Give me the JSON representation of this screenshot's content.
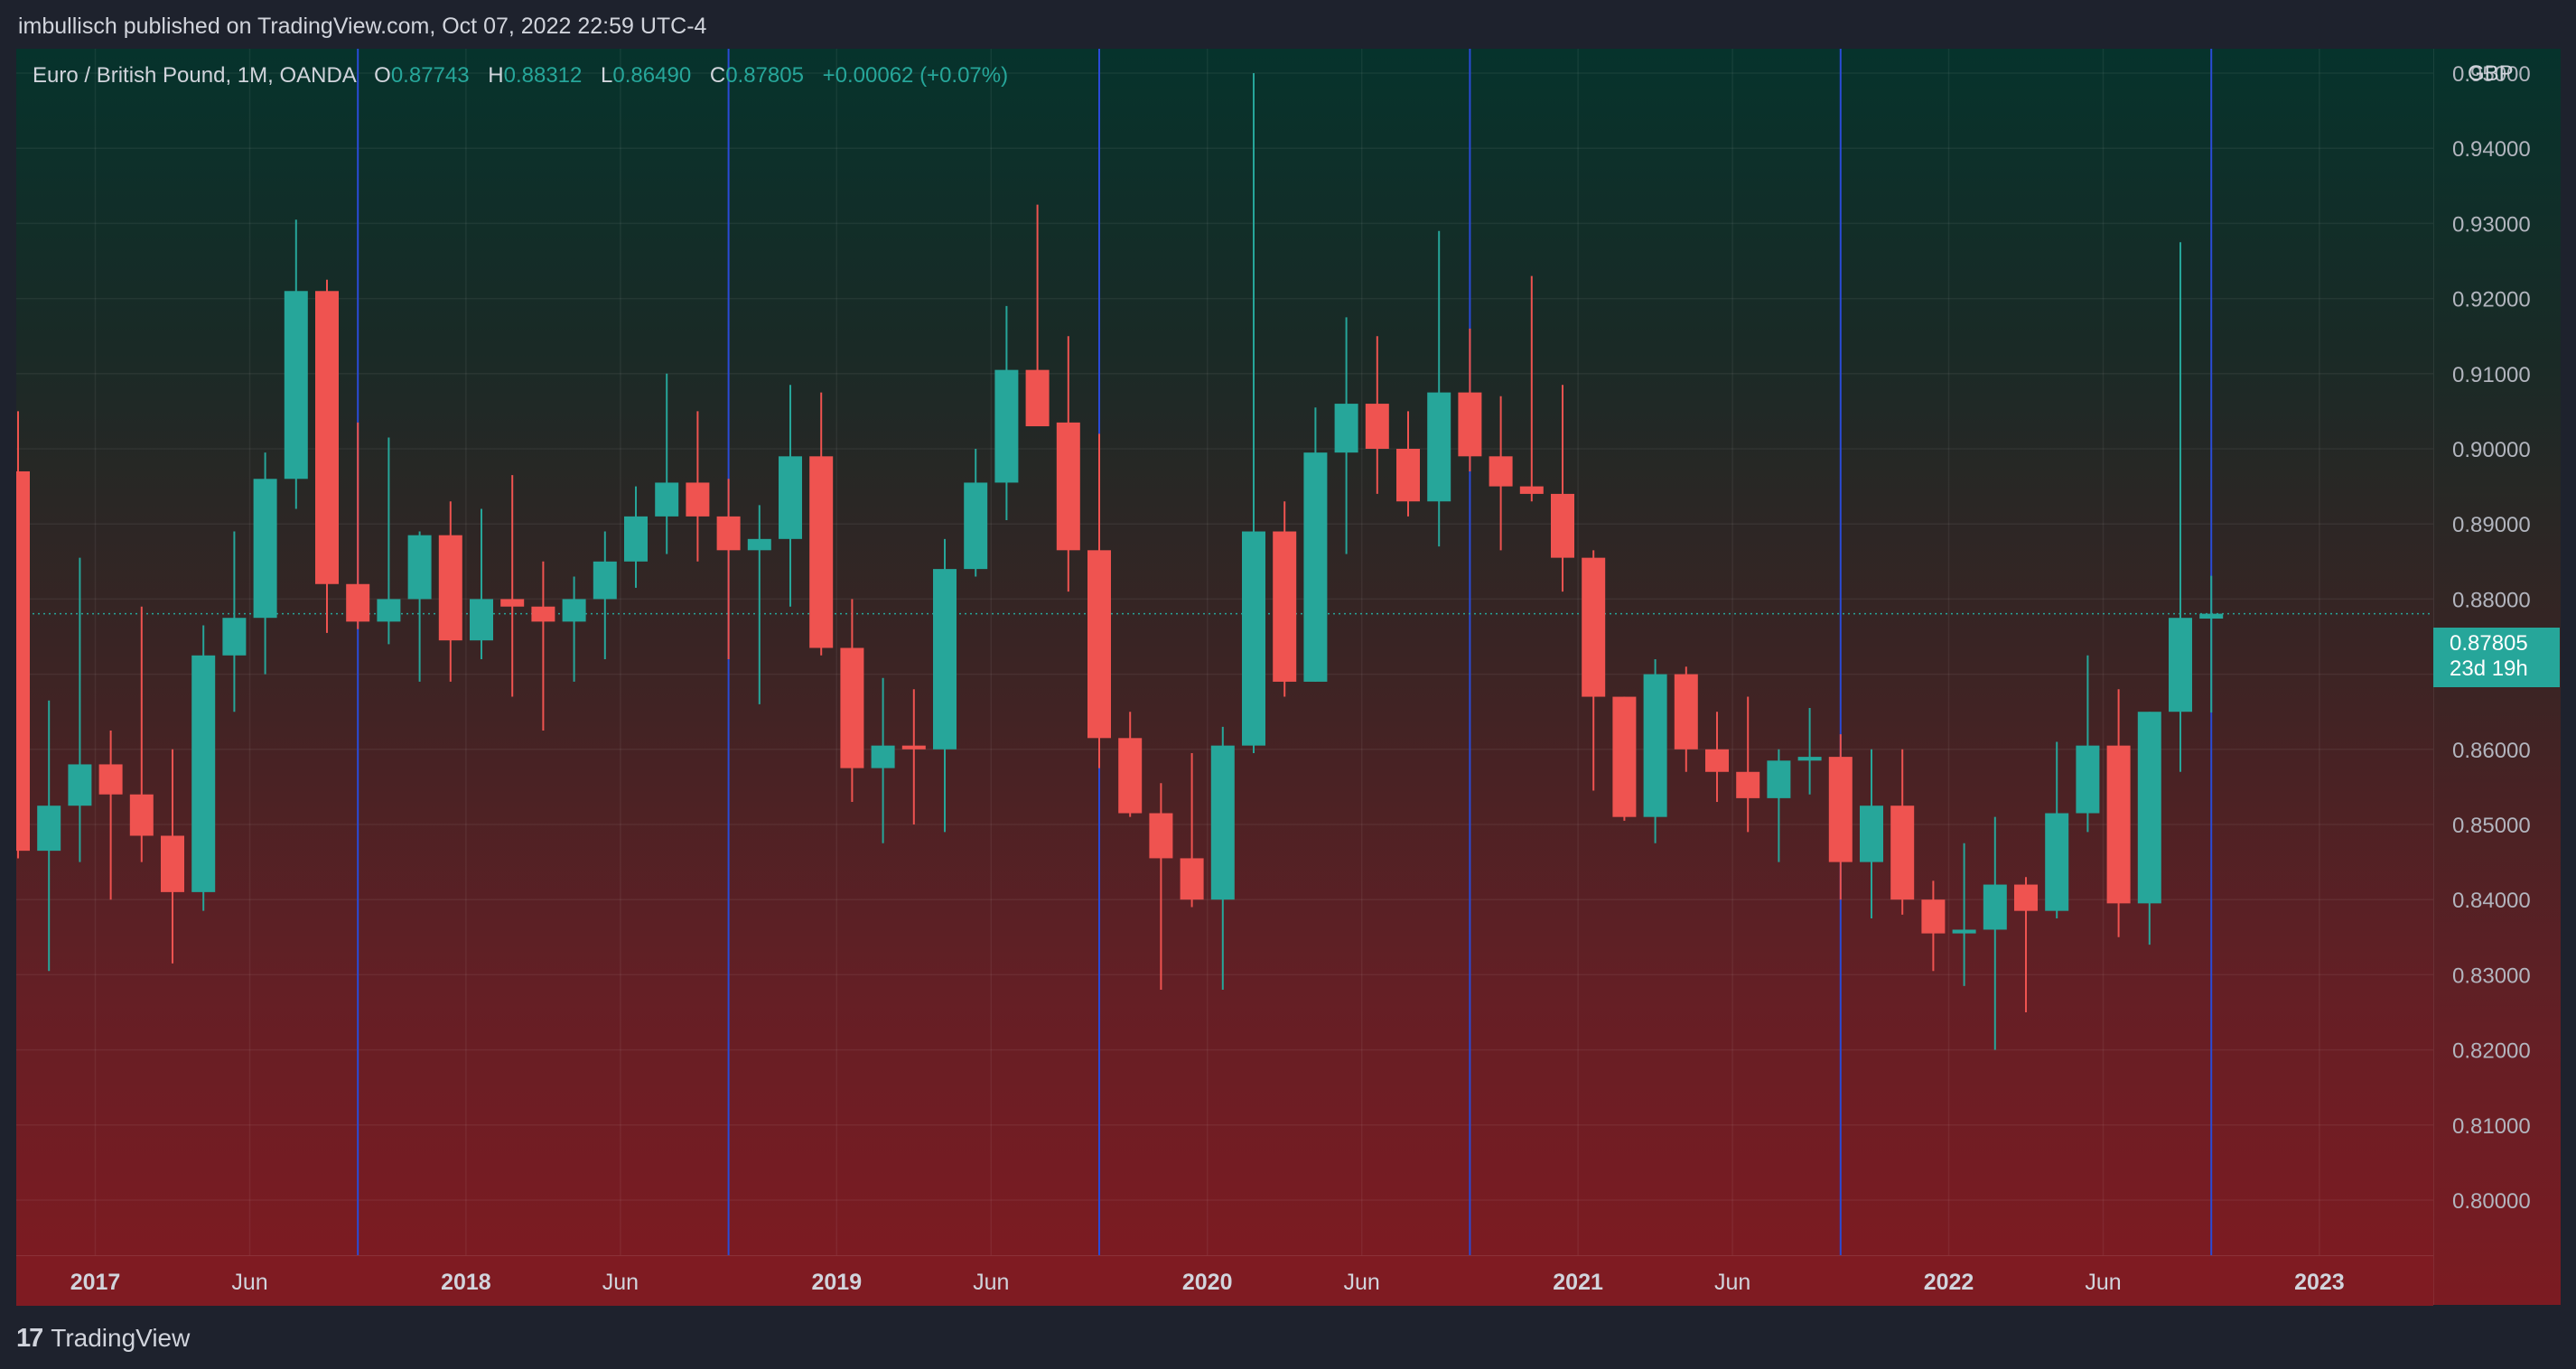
{
  "header": {
    "published_by": "imbullisch published on TradingView.com, Oct 07, 2022 22:59 UTC-4"
  },
  "legend": {
    "symbol": "Euro / British Pound, 1M, OANDA",
    "open_label": "O",
    "open": "0.87743",
    "high_label": "H",
    "high": "0.88312",
    "low_label": "L",
    "low": "0.86490",
    "close_label": "C",
    "close": "0.87805",
    "change": "+0.00062 (+0.07%)"
  },
  "price_axis": {
    "currency": "GBP"
  },
  "last_price": {
    "value": "0.87805",
    "countdown": "23d 19h"
  },
  "footer": {
    "brand": "TradingView",
    "logo_text": "17"
  },
  "colors": {
    "up": "#26a69a",
    "down": "#ef5350",
    "separator": "#2a4bd7"
  },
  "chart_data": {
    "type": "candlestick",
    "title": "Euro / British Pound, 1M, OANDA",
    "ylabel": "GBP",
    "ylim": [
      0.8,
      0.9515
    ],
    "y_ticks": [
      "0.80000",
      "0.81000",
      "0.82000",
      "0.83000",
      "0.84000",
      "0.85000",
      "0.86000",
      "0.87000",
      "0.88000",
      "0.89000",
      "0.90000",
      "0.91000",
      "0.92000",
      "0.93000",
      "0.94000",
      "0.95000"
    ],
    "x_ticks": [
      {
        "label": "2017",
        "index": 2.5,
        "major": true
      },
      {
        "label": "Jun",
        "index": 7.5,
        "major": false
      },
      {
        "label": "2018",
        "index": 14.5,
        "major": true
      },
      {
        "label": "Jun",
        "index": 19.5,
        "major": false
      },
      {
        "label": "2019",
        "index": 26.5,
        "major": true
      },
      {
        "label": "Jun",
        "index": 31.5,
        "major": false
      },
      {
        "label": "2020",
        "index": 38.5,
        "major": true
      },
      {
        "label": "Jun",
        "index": 43.5,
        "major": false
      },
      {
        "label": "2021",
        "index": 50.5,
        "major": true
      },
      {
        "label": "Jun",
        "index": 55.5,
        "major": false
      },
      {
        "label": "2022",
        "index": 62.5,
        "major": true
      },
      {
        "label": "Jun",
        "index": 67.5,
        "major": false
      },
      {
        "label": "2023",
        "index": 74.5,
        "major": true
      }
    ],
    "separators": [
      11,
      23,
      35,
      47,
      59,
      71
    ],
    "last_price": 0.87805,
    "candles": [
      {
        "o": 0.897,
        "h": 0.905,
        "l": 0.8455,
        "c": 0.8465
      },
      {
        "o": 0.8465,
        "h": 0.8665,
        "l": 0.8305,
        "c": 0.8525
      },
      {
        "o": 0.8525,
        "h": 0.8855,
        "l": 0.845,
        "c": 0.858
      },
      {
        "o": 0.858,
        "h": 0.8625,
        "l": 0.84,
        "c": 0.854
      },
      {
        "o": 0.854,
        "h": 0.879,
        "l": 0.845,
        "c": 0.8485
      },
      {
        "o": 0.8485,
        "h": 0.86,
        "l": 0.8315,
        "c": 0.841
      },
      {
        "o": 0.841,
        "h": 0.8765,
        "l": 0.8385,
        "c": 0.8725
      },
      {
        "o": 0.8725,
        "h": 0.889,
        "l": 0.865,
        "c": 0.8775
      },
      {
        "o": 0.8775,
        "h": 0.8995,
        "l": 0.87,
        "c": 0.896
      },
      {
        "o": 0.896,
        "h": 0.9305,
        "l": 0.892,
        "c": 0.921
      },
      {
        "o": 0.921,
        "h": 0.9225,
        "l": 0.8755,
        "c": 0.882
      },
      {
        "o": 0.882,
        "h": 0.9035,
        "l": 0.876,
        "c": 0.877
      },
      {
        "o": 0.877,
        "h": 0.9015,
        "l": 0.874,
        "c": 0.88
      },
      {
        "o": 0.88,
        "h": 0.889,
        "l": 0.869,
        "c": 0.8885
      },
      {
        "o": 0.8885,
        "h": 0.893,
        "l": 0.869,
        "c": 0.8745
      },
      {
        "o": 0.8745,
        "h": 0.892,
        "l": 0.872,
        "c": 0.88
      },
      {
        "o": 0.88,
        "h": 0.8965,
        "l": 0.867,
        "c": 0.879
      },
      {
        "o": 0.879,
        "h": 0.885,
        "l": 0.8625,
        "c": 0.877
      },
      {
        "o": 0.877,
        "h": 0.883,
        "l": 0.869,
        "c": 0.88
      },
      {
        "o": 0.88,
        "h": 0.889,
        "l": 0.872,
        "c": 0.885
      },
      {
        "o": 0.885,
        "h": 0.895,
        "l": 0.8815,
        "c": 0.891
      },
      {
        "o": 0.891,
        "h": 0.91,
        "l": 0.886,
        "c": 0.8955
      },
      {
        "o": 0.8955,
        "h": 0.905,
        "l": 0.885,
        "c": 0.891
      },
      {
        "o": 0.891,
        "h": 0.896,
        "l": 0.872,
        "c": 0.8865
      },
      {
        "o": 0.8865,
        "h": 0.8925,
        "l": 0.866,
        "c": 0.888
      },
      {
        "o": 0.888,
        "h": 0.9085,
        "l": 0.879,
        "c": 0.899
      },
      {
        "o": 0.899,
        "h": 0.9075,
        "l": 0.8725,
        "c": 0.8735
      },
      {
        "o": 0.8735,
        "h": 0.88,
        "l": 0.853,
        "c": 0.8575
      },
      {
        "o": 0.8575,
        "h": 0.8695,
        "l": 0.8475,
        "c": 0.8605
      },
      {
        "o": 0.8605,
        "h": 0.868,
        "l": 0.85,
        "c": 0.86
      },
      {
        "o": 0.86,
        "h": 0.888,
        "l": 0.849,
        "c": 0.884
      },
      {
        "o": 0.884,
        "h": 0.9,
        "l": 0.883,
        "c": 0.8955
      },
      {
        "o": 0.8955,
        "h": 0.919,
        "l": 0.8905,
        "c": 0.9105
      },
      {
        "o": 0.9105,
        "h": 0.9325,
        "l": 0.904,
        "c": 0.903
      },
      {
        "o": 0.9035,
        "h": 0.915,
        "l": 0.881,
        "c": 0.8865
      },
      {
        "o": 0.8865,
        "h": 0.902,
        "l": 0.8575,
        "c": 0.8615
      },
      {
        "o": 0.8615,
        "h": 0.865,
        "l": 0.851,
        "c": 0.8515
      },
      {
        "o": 0.8515,
        "h": 0.8555,
        "l": 0.828,
        "c": 0.8455
      },
      {
        "o": 0.8455,
        "h": 0.8595,
        "l": 0.839,
        "c": 0.84
      },
      {
        "o": 0.84,
        "h": 0.863,
        "l": 0.828,
        "c": 0.8605
      },
      {
        "o": 0.8605,
        "h": 0.95,
        "l": 0.8595,
        "c": 0.889
      },
      {
        "o": 0.889,
        "h": 0.893,
        "l": 0.867,
        "c": 0.869
      },
      {
        "o": 0.869,
        "h": 0.9055,
        "l": 0.869,
        "c": 0.8995
      },
      {
        "o": 0.8995,
        "h": 0.9175,
        "l": 0.886,
        "c": 0.906
      },
      {
        "o": 0.906,
        "h": 0.915,
        "l": 0.894,
        "c": 0.9
      },
      {
        "o": 0.9,
        "h": 0.905,
        "l": 0.891,
        "c": 0.893
      },
      {
        "o": 0.893,
        "h": 0.929,
        "l": 0.887,
        "c": 0.9075
      },
      {
        "o": 0.9075,
        "h": 0.916,
        "l": 0.897,
        "c": 0.899
      },
      {
        "o": 0.899,
        "h": 0.907,
        "l": 0.8865,
        "c": 0.895
      },
      {
        "o": 0.895,
        "h": 0.923,
        "l": 0.893,
        "c": 0.894
      },
      {
        "o": 0.894,
        "h": 0.9085,
        "l": 0.881,
        "c": 0.8855
      },
      {
        "o": 0.8855,
        "h": 0.8865,
        "l": 0.8545,
        "c": 0.867
      },
      {
        "o": 0.867,
        "h": 0.867,
        "l": 0.8505,
        "c": 0.851
      },
      {
        "o": 0.851,
        "h": 0.872,
        "l": 0.8475,
        "c": 0.87
      },
      {
        "o": 0.87,
        "h": 0.871,
        "l": 0.857,
        "c": 0.86
      },
      {
        "o": 0.86,
        "h": 0.865,
        "l": 0.853,
        "c": 0.857
      },
      {
        "o": 0.857,
        "h": 0.867,
        "l": 0.849,
        "c": 0.8535
      },
      {
        "o": 0.8535,
        "h": 0.86,
        "l": 0.845,
        "c": 0.8585
      },
      {
        "o": 0.8585,
        "h": 0.8655,
        "l": 0.854,
        "c": 0.859
      },
      {
        "o": 0.859,
        "h": 0.862,
        "l": 0.84,
        "c": 0.845
      },
      {
        "o": 0.845,
        "h": 0.86,
        "l": 0.8375,
        "c": 0.8525
      },
      {
        "o": 0.8525,
        "h": 0.86,
        "l": 0.838,
        "c": 0.84
      },
      {
        "o": 0.84,
        "h": 0.8425,
        "l": 0.8305,
        "c": 0.8355
      },
      {
        "o": 0.8355,
        "h": 0.8475,
        "l": 0.8285,
        "c": 0.836
      },
      {
        "o": 0.836,
        "h": 0.851,
        "l": 0.82,
        "c": 0.842
      },
      {
        "o": 0.842,
        "h": 0.843,
        "l": 0.825,
        "c": 0.8385
      },
      {
        "o": 0.8385,
        "h": 0.861,
        "l": 0.8375,
        "c": 0.8515
      },
      {
        "o": 0.8515,
        "h": 0.8725,
        "l": 0.849,
        "c": 0.8605
      },
      {
        "o": 0.8605,
        "h": 0.868,
        "l": 0.835,
        "c": 0.8395
      },
      {
        "o": 0.8395,
        "h": 0.865,
        "l": 0.834,
        "c": 0.865
      },
      {
        "o": 0.865,
        "h": 0.9275,
        "l": 0.857,
        "c": 0.8775
      },
      {
        "o": 0.8774,
        "h": 0.8831,
        "l": 0.8649,
        "c": 0.87805
      }
    ]
  }
}
